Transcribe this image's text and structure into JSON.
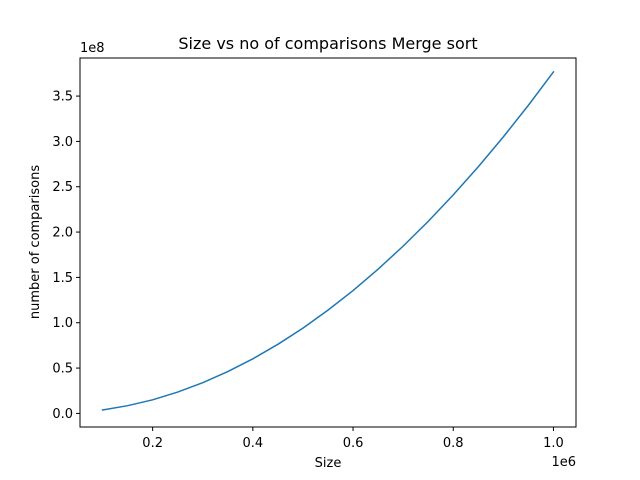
{
  "chart_data": {
    "type": "line",
    "title": "Size vs no of comparisons Merge sort",
    "xlabel": "Size",
    "ylabel": "number of comparisons",
    "x_multiplier_label": "1e6",
    "y_multiplier_label": "1e8",
    "xlim": [
      0.055,
      1.045
    ],
    "ylim": [
      -0.15,
      3.92
    ],
    "x_ticks": [
      {
        "value": 0.2,
        "label": "0.2"
      },
      {
        "value": 0.4,
        "label": "0.4"
      },
      {
        "value": 0.6,
        "label": "0.6"
      },
      {
        "value": 0.8,
        "label": "0.8"
      },
      {
        "value": 1.0,
        "label": "1.0"
      }
    ],
    "y_ticks": [
      {
        "value": 0.0,
        "label": "0.0"
      },
      {
        "value": 0.5,
        "label": "0.5"
      },
      {
        "value": 1.0,
        "label": "1.0"
      },
      {
        "value": 1.5,
        "label": "1.5"
      },
      {
        "value": 2.0,
        "label": "2.0"
      },
      {
        "value": 2.5,
        "label": "2.5"
      },
      {
        "value": 3.0,
        "label": "3.0"
      },
      {
        "value": 3.5,
        "label": "3.5"
      }
    ],
    "grid": false,
    "series": [
      {
        "color": "#1f77b4",
        "x": [
          0.1,
          0.15,
          0.2,
          0.25,
          0.3,
          0.35,
          0.4,
          0.45,
          0.5,
          0.55,
          0.6,
          0.65,
          0.7,
          0.75,
          0.8,
          0.85,
          0.9,
          0.95,
          1.0
        ],
        "y": [
          0.038,
          0.085,
          0.15,
          0.235,
          0.339,
          0.461,
          0.602,
          0.762,
          0.941,
          1.139,
          1.355,
          1.591,
          1.845,
          2.118,
          2.41,
          2.721,
          3.05,
          3.399,
          3.766
        ]
      }
    ]
  }
}
